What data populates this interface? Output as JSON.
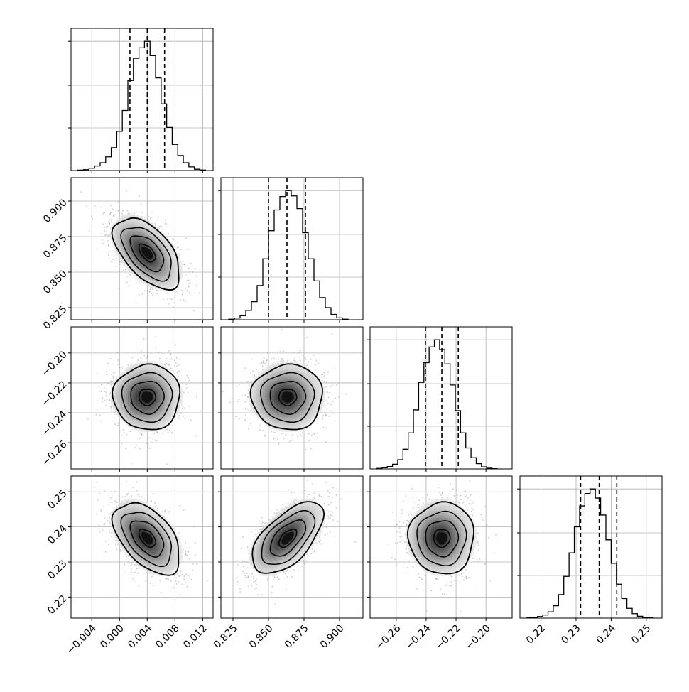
{
  "chart_data": {
    "type": "corner",
    "grid": true,
    "parameters": [
      {
        "xlim": [
          -0.007,
          0.0135
        ],
        "ticks": [
          -0.004,
          0.0,
          0.004,
          0.008,
          0.012
        ],
        "tick_labels": [
          "−0.004",
          "0.000",
          "0.004",
          "0.008",
          "0.012"
        ],
        "quantiles": [
          0.0015,
          0.004,
          0.0065
        ],
        "histogram": {
          "edges": [
            -0.006,
            -0.0052,
            -0.0044,
            -0.0036,
            -0.0028,
            -0.002,
            -0.0012,
            -0.0004,
            0.0004,
            0.0012,
            0.002,
            0.0028,
            0.0036,
            0.0044,
            0.0052,
            0.006,
            0.0068,
            0.0076,
            0.0084,
            0.0092,
            0.01,
            0.0108,
            0.0116,
            0.0124
          ],
          "counts": [
            3,
            7,
            18,
            35,
            60,
            105,
            175,
            300,
            460,
            690,
            860,
            940,
            990,
            880,
            710,
            510,
            330,
            200,
            115,
            60,
            28,
            10,
            4
          ]
        }
      },
      {
        "xlim": [
          0.8165,
          0.9165
        ],
        "ticks": [
          0.825,
          0.85,
          0.875,
          0.9
        ],
        "tick_labels": [
          "0.825",
          "0.850",
          "0.875",
          "0.900"
        ],
        "quantiles": [
          0.85,
          0.863,
          0.876
        ],
        "histogram": {
          "edges": [
            0.822,
            0.826,
            0.83,
            0.834,
            0.838,
            0.842,
            0.846,
            0.85,
            0.854,
            0.858,
            0.862,
            0.866,
            0.87,
            0.874,
            0.878,
            0.882,
            0.886,
            0.89,
            0.894,
            0.898,
            0.902,
            0.906
          ],
          "counts": [
            4,
            12,
            30,
            70,
            135,
            255,
            455,
            665,
            820,
            920,
            965,
            925,
            830,
            650,
            455,
            290,
            165,
            90,
            40,
            14,
            4
          ]
        }
      },
      {
        "xlim": [
          -0.2775,
          -0.1825
        ],
        "ticks": [
          -0.26,
          -0.24,
          -0.22,
          -0.2
        ],
        "tick_labels": [
          "−0.26",
          "−0.24",
          "−0.22",
          "−0.20"
        ],
        "quantiles": [
          -0.2405,
          -0.2295,
          -0.2185
        ],
        "histogram": {
          "edges": [
            -0.273,
            -0.2695,
            -0.266,
            -0.2625,
            -0.259,
            -0.2555,
            -0.252,
            -0.2485,
            -0.245,
            -0.2415,
            -0.238,
            -0.2345,
            -0.231,
            -0.2275,
            -0.224,
            -0.2205,
            -0.217,
            -0.2135,
            -0.21,
            -0.2065,
            -0.203,
            -0.1995,
            -0.196,
            -0.1925
          ],
          "counts": [
            4,
            9,
            18,
            36,
            70,
            150,
            275,
            450,
            660,
            810,
            930,
            985,
            910,
            800,
            640,
            445,
            275,
            160,
            85,
            40,
            16,
            6,
            2
          ]
        }
      },
      {
        "xlim": [
          0.214,
          0.2545
        ],
        "ticks": [
          0.22,
          0.23,
          0.24,
          0.25
        ],
        "tick_labels": [
          "0.22",
          "0.23",
          "0.24",
          "0.25"
        ],
        "quantiles": [
          0.2313,
          0.2366,
          0.2416
        ],
        "histogram": {
          "edges": [
            0.216,
            0.2175,
            0.219,
            0.2205,
            0.222,
            0.2235,
            0.225,
            0.2265,
            0.228,
            0.2295,
            0.231,
            0.2325,
            0.234,
            0.2355,
            0.237,
            0.2385,
            0.24,
            0.2415,
            0.243,
            0.2445,
            0.246,
            0.2475,
            0.249,
            0.2505,
            0.252
          ],
          "counts": [
            2,
            5,
            12,
            24,
            48,
            95,
            180,
            320,
            500,
            700,
            860,
            955,
            990,
            920,
            790,
            600,
            420,
            260,
            150,
            75,
            34,
            14,
            5,
            2
          ]
        }
      }
    ],
    "pair_panels": [
      {
        "row": 1,
        "col": 0,
        "center": [
          0.004,
          0.8635
        ],
        "sd": [
          0.0024,
          0.0125
        ],
        "rho": -0.55
      },
      {
        "row": 2,
        "col": 0,
        "center": [
          0.004,
          -0.2295
        ],
        "sd": [
          0.0024,
          0.0109
        ],
        "rho": 0.0
      },
      {
        "row": 2,
        "col": 1,
        "center": [
          0.8635,
          -0.2295
        ],
        "sd": [
          0.0125,
          0.0109
        ],
        "rho": 0.0
      },
      {
        "row": 3,
        "col": 0,
        "center": [
          0.004,
          0.2368
        ],
        "sd": [
          0.0024,
          0.0051
        ],
        "rho": -0.5
      },
      {
        "row": 3,
        "col": 1,
        "center": [
          0.8635,
          0.2368
        ],
        "sd": [
          0.0125,
          0.0051
        ],
        "rho": 0.6
      },
      {
        "row": 3,
        "col": 2,
        "center": [
          -0.2295,
          0.2368
        ],
        "sd": [
          0.0109,
          0.0051
        ],
        "rho": 0.0
      }
    ],
    "contour_levels_sigma": [
      0.5,
      1.0,
      1.5,
      2.0
    ]
  }
}
